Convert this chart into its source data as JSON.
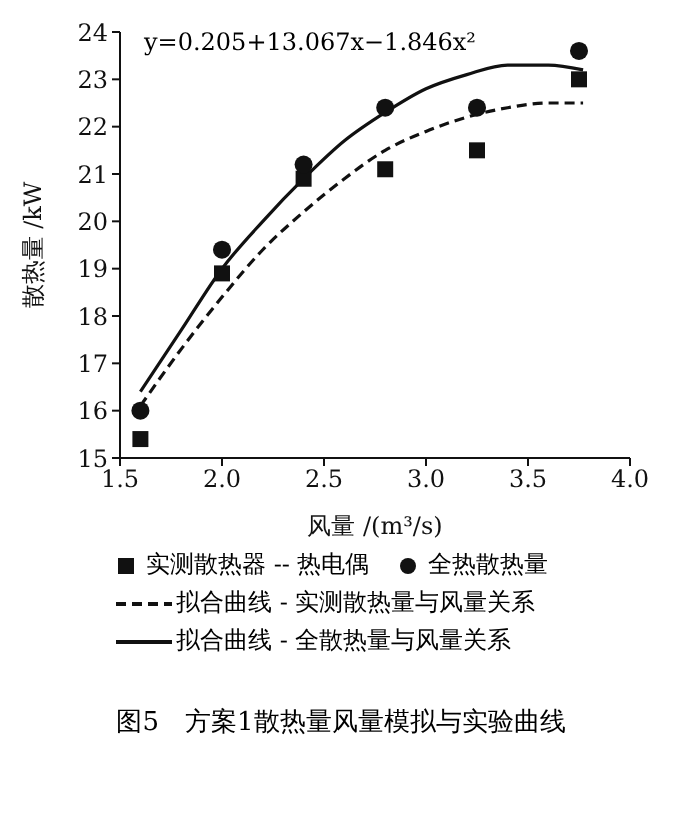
{
  "chart_data": {
    "type": "scatter",
    "title": "图5　方案1散热量风量模拟与实验曲线",
    "xlabel": "风量 /(m³/s)",
    "ylabel": "散热量 /kW",
    "annotations": [
      "y=0.205+13.067x−1.846x²"
    ],
    "xlim": [
      1.5,
      4.0
    ],
    "xticks": [
      {
        "value": 1.5,
        "label": "1.5"
      },
      {
        "value": 2.0,
        "label": "2.0"
      },
      {
        "value": 2.5,
        "label": "2.5"
      },
      {
        "value": 3.0,
        "label": "3.0"
      },
      {
        "value": 3.5,
        "label": "3.5"
      },
      {
        "value": 4.0,
        "label": "4.0"
      }
    ],
    "ylim": [
      15,
      24
    ],
    "yticks": [
      15,
      16,
      17,
      18,
      19,
      20,
      21,
      22,
      23,
      24
    ],
    "grid": false,
    "legend": "bottom",
    "series": [
      {
        "name": "实测散热器 -- 热电偶",
        "marker": "square",
        "color": "#111111",
        "x": [
          1.6,
          2.0,
          2.4,
          2.8,
          3.25,
          3.75
        ],
        "values": [
          15.4,
          18.9,
          20.9,
          21.1,
          21.5,
          23.0
        ]
      },
      {
        "name": "全热散热量",
        "marker": "circle",
        "color": "#111111",
        "x": [
          1.6,
          2.0,
          2.4,
          2.8,
          3.25,
          3.75
        ],
        "values": [
          16.0,
          19.4,
          21.2,
          22.4,
          22.4,
          23.6
        ]
      },
      {
        "name": "拟合曲线 - 实测散热量与风量关系",
        "type": "line",
        "marker": "none",
        "line_style": "dashed",
        "color": "#111111",
        "x": [
          1.6,
          1.8,
          2.0,
          2.2,
          2.4,
          2.6,
          2.8,
          3.0,
          3.2,
          3.4,
          3.6,
          3.77
        ],
        "values": [
          16.1,
          17.3,
          18.4,
          19.4,
          20.2,
          20.9,
          21.5,
          21.9,
          22.2,
          22.4,
          22.5,
          22.5
        ]
      },
      {
        "name": "拟合曲线 - 全散热量与风量关系",
        "type": "line",
        "marker": "none",
        "line_style": "solid",
        "color": "#111111",
        "x": [
          1.6,
          1.8,
          2.0,
          2.2,
          2.4,
          2.6,
          2.8,
          3.0,
          3.2,
          3.4,
          3.6,
          3.77
        ],
        "values": [
          16.4,
          17.7,
          19.0,
          20.0,
          20.9,
          21.7,
          22.3,
          22.8,
          23.1,
          23.3,
          23.3,
          23.2
        ]
      }
    ]
  }
}
